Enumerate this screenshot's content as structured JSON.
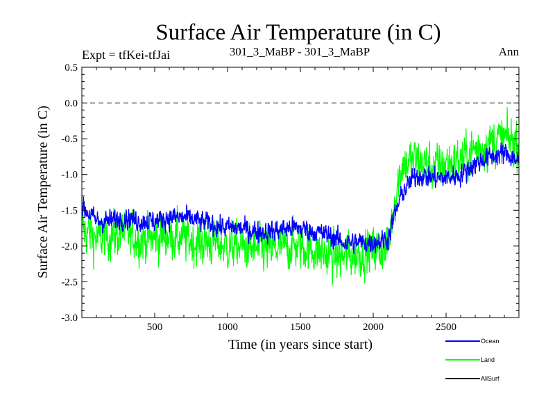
{
  "title": "Surface Air Temperature (in C)",
  "subtitle_left": "Expt = tfKei-tfJai",
  "subtitle_center": "301_3_MaBP - 301_3_MaBP",
  "subtitle_right": "Ann",
  "chart_data": {
    "type": "line",
    "title": "Surface Air Temperature (in C)",
    "xlabel": "Time (in years since start)",
    "ylabel": "Surface Air Temperature (in C)",
    "xlim": [
      0,
      3000
    ],
    "ylim": [
      -3.0,
      0.5
    ],
    "xticks": [
      500,
      1000,
      1500,
      2000,
      2500
    ],
    "xtick_labels": [
      "500",
      "1000",
      "1500",
      "2000",
      "2500"
    ],
    "yticks": [
      0.5,
      0.0,
      -0.5,
      -1.0,
      -1.5,
      -2.0,
      -2.5,
      -3.0
    ],
    "ytick_labels": [
      "0.5",
      "0.0",
      "-0.5",
      "-1.0",
      "-1.5",
      "-2.0",
      "-2.5",
      "-3.0"
    ],
    "reference_line": 0.0,
    "grid": false,
    "legend_position": "bottom-right, below plot",
    "series": [
      {
        "name": "Land",
        "color": "#00ff00",
        "x": [
          0,
          100,
          200,
          300,
          400,
          500,
          600,
          700,
          800,
          900,
          1000,
          1100,
          1200,
          1300,
          1400,
          1500,
          1600,
          1700,
          1800,
          1900,
          2000,
          2100,
          2150,
          2200,
          2300,
          2400,
          2500,
          2600,
          2700,
          2800,
          2900,
          3000
        ],
        "values": [
          -1.75,
          -1.9,
          -1.85,
          -1.8,
          -1.9,
          -1.9,
          -1.85,
          -1.9,
          -1.95,
          -1.95,
          -2.0,
          -2.0,
          -2.05,
          -2.05,
          -2.0,
          -2.0,
          -2.05,
          -2.15,
          -2.15,
          -2.1,
          -2.05,
          -2.05,
          -1.3,
          -0.85,
          -0.8,
          -0.9,
          -0.85,
          -0.8,
          -0.65,
          -0.55,
          -0.5,
          -0.55
        ],
        "noise": 0.22
      },
      {
        "name": "Ocean",
        "color": "#0000ff",
        "x": [
          0,
          100,
          200,
          300,
          400,
          500,
          600,
          700,
          800,
          900,
          1000,
          1100,
          1200,
          1300,
          1400,
          1500,
          1600,
          1700,
          1800,
          1900,
          2000,
          2100,
          2150,
          2200,
          2300,
          2400,
          2500,
          2600,
          2700,
          2800,
          2900,
          3000
        ],
        "values": [
          -1.45,
          -1.65,
          -1.65,
          -1.6,
          -1.65,
          -1.65,
          -1.6,
          -1.6,
          -1.65,
          -1.7,
          -1.75,
          -1.75,
          -1.8,
          -1.8,
          -1.75,
          -1.75,
          -1.8,
          -1.85,
          -1.95,
          -1.95,
          -1.95,
          -1.9,
          -1.55,
          -1.25,
          -1.0,
          -1.05,
          -1.05,
          -1.0,
          -0.85,
          -0.75,
          -0.7,
          -0.8
        ],
        "noise": 0.1
      },
      {
        "name": "AllSurf",
        "color": "#000000",
        "values": []
      }
    ]
  }
}
